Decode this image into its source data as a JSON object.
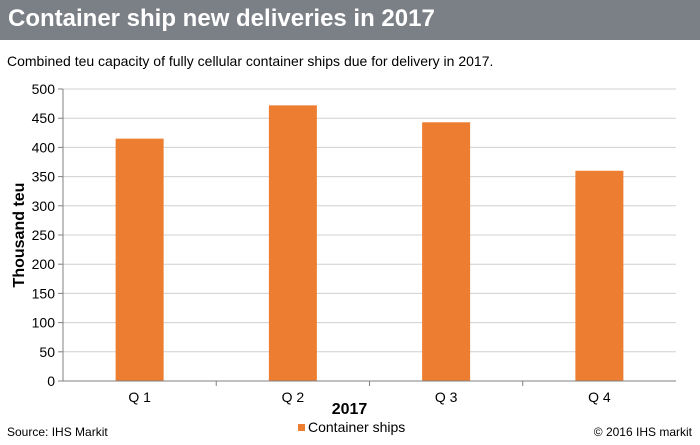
{
  "header": {
    "title": "Container ship new deliveries in 2017"
  },
  "subtitle": "Combined teu capacity of fully cellular container ships due for delivery in 2017.",
  "footer": {
    "source": "Source: IHS Markit",
    "copyright": "© 2016 IHS markit"
  },
  "colors": {
    "header_bg": "#7b7f86",
    "bar": "#ed7d31"
  },
  "chart_data": {
    "type": "bar",
    "categories": [
      "Q 1",
      "Q 2",
      "Q 3",
      "Q 4"
    ],
    "series": [
      {
        "name": "Container ships",
        "values": [
          415,
          472,
          443,
          360
        ]
      }
    ],
    "xlabel": "2017",
    "ylabel": "Thousand teu",
    "ylim": [
      0,
      500
    ],
    "yticks": [
      0,
      50,
      100,
      150,
      200,
      250,
      300,
      350,
      400,
      450,
      500
    ],
    "grid": true,
    "legend": "bottom"
  }
}
